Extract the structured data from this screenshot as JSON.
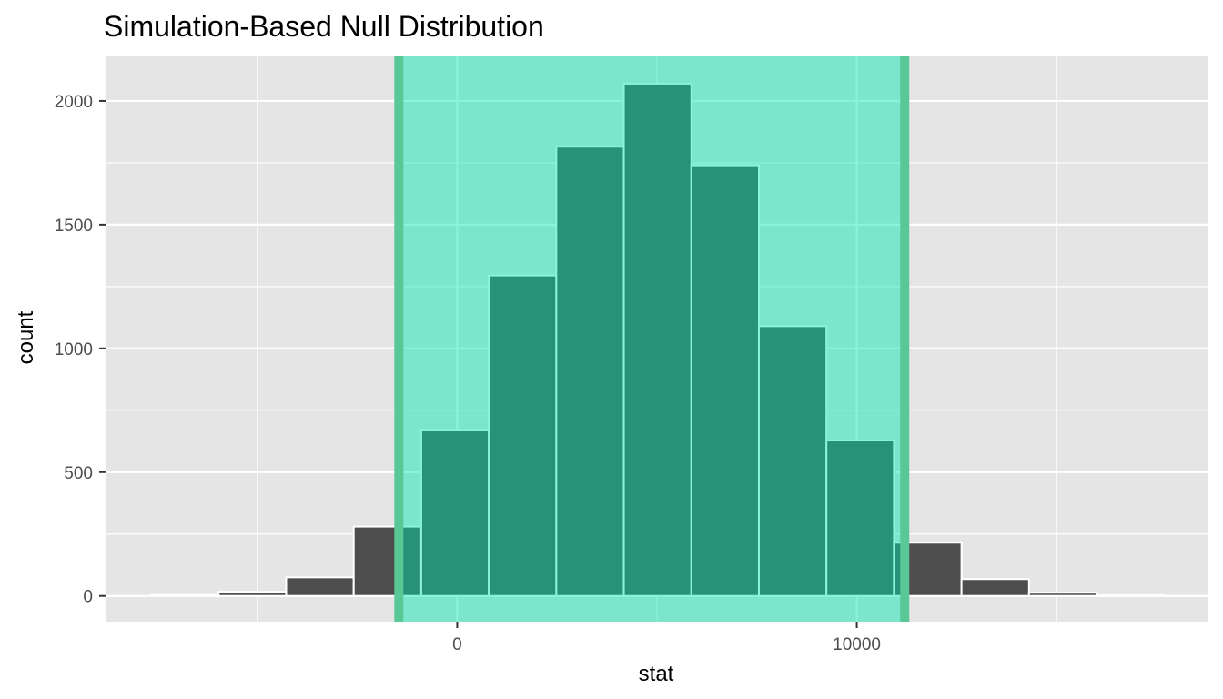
{
  "chart_data": {
    "type": "bar",
    "title": "Simulation-Based Null Distribution",
    "xlabel": "stat",
    "ylabel": "count",
    "xlim": [
      -8800,
      18800
    ],
    "ylim": [
      -104,
      2180
    ],
    "x_ticks": [
      0,
      10000
    ],
    "x_tick_labels": [
      "0",
      "10000"
    ],
    "x_minor_ticks": [
      -5000,
      5000,
      15000
    ],
    "y_ticks": [
      0,
      500,
      1000,
      1500,
      2000
    ],
    "y_tick_labels": [
      "0",
      "500",
      "1000",
      "1500",
      "2000"
    ],
    "y_minor_ticks": [
      250,
      750,
      1250,
      1750
    ],
    "grid": true,
    "bins": [
      {
        "x0": -7660,
        "x1": -5970,
        "count": 4
      },
      {
        "x0": -5970,
        "x1": -4280,
        "count": 17
      },
      {
        "x0": -4280,
        "x1": -2590,
        "count": 75
      },
      {
        "x0": -2590,
        "x1": -900,
        "count": 280
      },
      {
        "x0": -900,
        "x1": 790,
        "count": 670
      },
      {
        "x0": 790,
        "x1": 2480,
        "count": 1295
      },
      {
        "x0": 2480,
        "x1": 4170,
        "count": 1815
      },
      {
        "x0": 4170,
        "x1": 5860,
        "count": 2070
      },
      {
        "x0": 5860,
        "x1": 7550,
        "count": 1740
      },
      {
        "x0": 7550,
        "x1": 9240,
        "count": 1090
      },
      {
        "x0": 9240,
        "x1": 10930,
        "count": 628
      },
      {
        "x0": 10930,
        "x1": 12620,
        "count": 215
      },
      {
        "x0": 12620,
        "x1": 14310,
        "count": 68
      },
      {
        "x0": 14310,
        "x1": 16000,
        "count": 13
      },
      {
        "x0": 16000,
        "x1": 17690,
        "count": 3
      }
    ],
    "shade_interval": [
      -1460,
      11200
    ],
    "colors": {
      "panel": "#e5e5e5",
      "grid": "#ffffff",
      "bar_fill": "#4d4d4d",
      "bar_outline": "#ffffff",
      "shade": "#00e5b0",
      "interval_line": "#5ac896"
    }
  }
}
